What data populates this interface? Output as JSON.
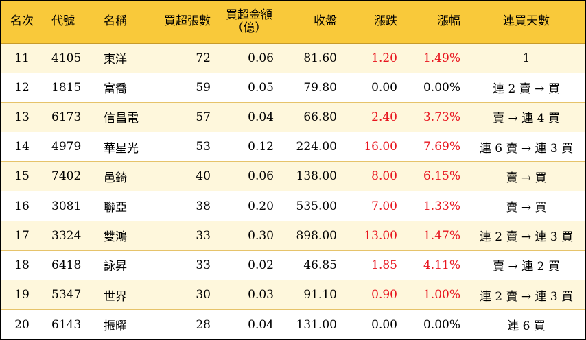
{
  "headers": {
    "rank": "名次",
    "code": "代號",
    "name": "名稱",
    "net_buy_lots": "買超張數",
    "net_buy_amount_line1": "買超金額",
    "net_buy_amount_line2": "（億）",
    "close": "收盤",
    "change": "漲跌",
    "change_pct": "漲幅",
    "consecutive_days": "連買天數"
  },
  "rows": [
    {
      "rank": "11",
      "code": "4105",
      "name": "東洋",
      "lots": "72",
      "amount": "0.06",
      "close": "81.60",
      "change": "1.20",
      "pct": "1.49%",
      "days": "1",
      "up": true
    },
    {
      "rank": "12",
      "code": "1815",
      "name": "富喬",
      "lots": "59",
      "amount": "0.05",
      "close": "79.80",
      "change": "0.00",
      "pct": "0.00%",
      "days": "連 2 賣 → 買",
      "up": false
    },
    {
      "rank": "13",
      "code": "6173",
      "name": "信昌電",
      "lots": "57",
      "amount": "0.04",
      "close": "66.80",
      "change": "2.40",
      "pct": "3.73%",
      "days": "賣 → 連 4 買",
      "up": true
    },
    {
      "rank": "14",
      "code": "4979",
      "name": "華星光",
      "lots": "53",
      "amount": "0.12",
      "close": "224.00",
      "change": "16.00",
      "pct": "7.69%",
      "days": "連 6 賣 → 連 3 買",
      "up": true
    },
    {
      "rank": "15",
      "code": "7402",
      "name": "邑錡",
      "lots": "40",
      "amount": "0.06",
      "close": "138.00",
      "change": "8.00",
      "pct": "6.15%",
      "days": "賣 → 買",
      "up": true
    },
    {
      "rank": "16",
      "code": "3081",
      "name": "聯亞",
      "lots": "38",
      "amount": "0.20",
      "close": "535.00",
      "change": "7.00",
      "pct": "1.33%",
      "days": "賣 → 買",
      "up": true
    },
    {
      "rank": "17",
      "code": "3324",
      "name": "雙鴻",
      "lots": "33",
      "amount": "0.30",
      "close": "898.00",
      "change": "13.00",
      "pct": "1.47%",
      "days": "連 2 賣 → 連 3 買",
      "up": true
    },
    {
      "rank": "18",
      "code": "6418",
      "name": "詠昇",
      "lots": "33",
      "amount": "0.02",
      "close": "46.85",
      "change": "1.85",
      "pct": "4.11%",
      "days": "賣 → 連 2 買",
      "up": true
    },
    {
      "rank": "19",
      "code": "5347",
      "name": "世界",
      "lots": "30",
      "amount": "0.03",
      "close": "91.10",
      "change": "0.90",
      "pct": "1.00%",
      "days": "連 2 賣 → 連 3 買",
      "up": true
    },
    {
      "rank": "20",
      "code": "6143",
      "name": "振曜",
      "lots": "28",
      "amount": "0.04",
      "close": "131.00",
      "change": "0.00",
      "pct": "0.00%",
      "days": "連 6 買",
      "up": false
    }
  ],
  "colors": {
    "header_bg": "#f9c93a",
    "odd_row_bg": "#fef7dc",
    "up_text": "#e8141e"
  }
}
